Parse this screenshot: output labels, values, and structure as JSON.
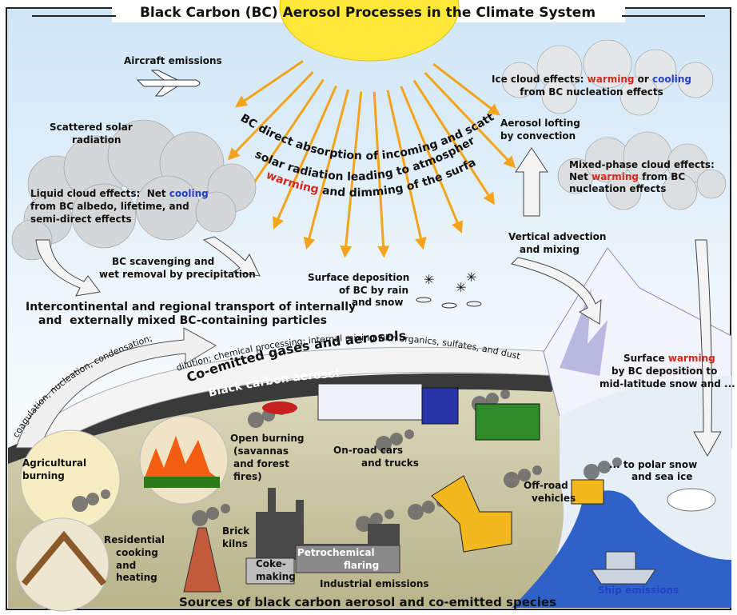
{
  "title": "Black Carbon (BC) Aerosol Processes in the Climate System",
  "labels": {
    "aircraft": [
      "Aircraft emissions"
    ],
    "scattered": [
      "Scattered solar",
      "radiation"
    ],
    "direct_absorption": [
      "BC direct absorption of incoming and scattered",
      "solar radiation leading to atmospheric",
      [
        "warming",
        " and dimming of the surface"
      ]
    ],
    "ice_cloud": [
      [
        "Ice cloud effects: ",
        "warming",
        " or ",
        "cooling"
      ],
      "from BC nucleation effects"
    ],
    "lofting": [
      "Aerosol lofting",
      "by convection"
    ],
    "mixed_phase": [
      "Mixed-phase cloud effects:",
      [
        "Net ",
        "warming",
        " from BC"
      ],
      "nucleation effects"
    ],
    "liquid_cloud": [
      [
        "Liquid cloud effects:  Net ",
        "cooling"
      ],
      "from BC albedo, lifetime, and",
      "semi-direct effects"
    ],
    "scavenging": [
      "BC scavenging and",
      "wet removal by precipitation"
    ],
    "vertical": [
      "Vertical advection",
      "and mixing"
    ],
    "deposition": [
      "Surface deposition",
      "of BC by rain",
      "and snow"
    ],
    "transport": [
      "Intercontinental and regional transport of internally",
      "and  externally mixed BC-containing particles"
    ],
    "coagulation": [
      "coagulation, nucleation, condensation;"
    ],
    "dilution": [
      "dilution; chemical processing; internal mixing with organics, sulfates, and dust"
    ],
    "co_emitted": [
      "Co-emitted gases and aerosols"
    ],
    "bc_aerosol": [
      "Black carbon aerosol"
    ],
    "surface_warming": [
      [
        "Surface ",
        "warming"
      ],
      "by BC deposition to",
      "mid-latitude snow and ..."
    ],
    "open_burning": [
      "Open burning",
      "(savannas",
      "and forest",
      "fires)"
    ],
    "on_road": [
      "On-road cars",
      "and trucks"
    ],
    "agricultural": [
      "Agricultural",
      "burning"
    ],
    "off_road": [
      "Off-road",
      "vehicles"
    ],
    "polar": [
      "... to polar snow",
      "and sea ice"
    ],
    "brick": [
      "Brick",
      "kilns"
    ],
    "residential": [
      "Residential",
      "cooking",
      "and",
      "heating"
    ],
    "petrochemical": [
      "Petrochemical",
      "flaring"
    ],
    "coke": [
      "Coke-",
      "making"
    ],
    "industrial": [
      "Industrial emissions"
    ],
    "ship": [
      "Ship emissions"
    ]
  },
  "footer": "Sources of black carbon aerosol and co-emitted species"
}
